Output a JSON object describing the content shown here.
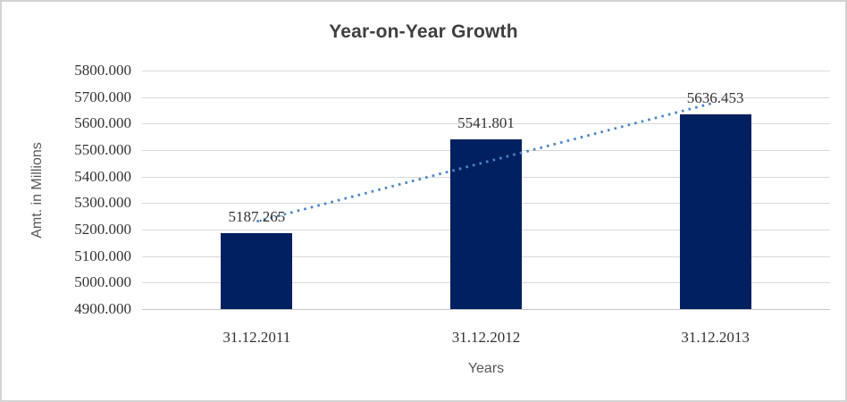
{
  "window": {
    "background": "#ffffff",
    "frame_border_color": "#d3d3d3"
  },
  "chart_data": {
    "type": "bar",
    "title": "Year-on-Year Growth",
    "xlabel": "Years",
    "ylabel": "Amt. in Millions",
    "categories": [
      "31.12.2011",
      "31.12.2012",
      "31.12.2013"
    ],
    "values": [
      5187.265,
      5541.801,
      5636.453
    ],
    "data_labels": [
      "5187.265",
      "5541.801",
      "5636.453"
    ],
    "ylim": [
      4900,
      5800
    ],
    "yticks": [
      {
        "value": 5800,
        "label": "5800.000"
      },
      {
        "value": 5700,
        "label": "5700.000"
      },
      {
        "value": 5600,
        "label": "5600.000"
      },
      {
        "value": 5500,
        "label": "5500.000"
      },
      {
        "value": 5400,
        "label": "5400.000"
      },
      {
        "value": 5300,
        "label": "5300.000"
      },
      {
        "value": 5200,
        "label": "5200.000"
      },
      {
        "value": 5100,
        "label": "5100.000"
      },
      {
        "value": 5000,
        "label": "5000.000"
      },
      {
        "value": 4900,
        "label": "4900.000"
      }
    ],
    "grid": true,
    "legend": false,
    "trendline": {
      "type": "linear",
      "style": "dotted",
      "start_value": 5230.6,
      "end_value": 5679.8,
      "color": "#4a87c8"
    },
    "colors": {
      "bar": "#002060",
      "gridline": "#d9d9d9",
      "axis_line": "#c6c6c6",
      "title_text": "#3f3f3f",
      "tick_text": "#333333",
      "data_label_text": "#333333",
      "axis_title_text": "#595959"
    }
  }
}
